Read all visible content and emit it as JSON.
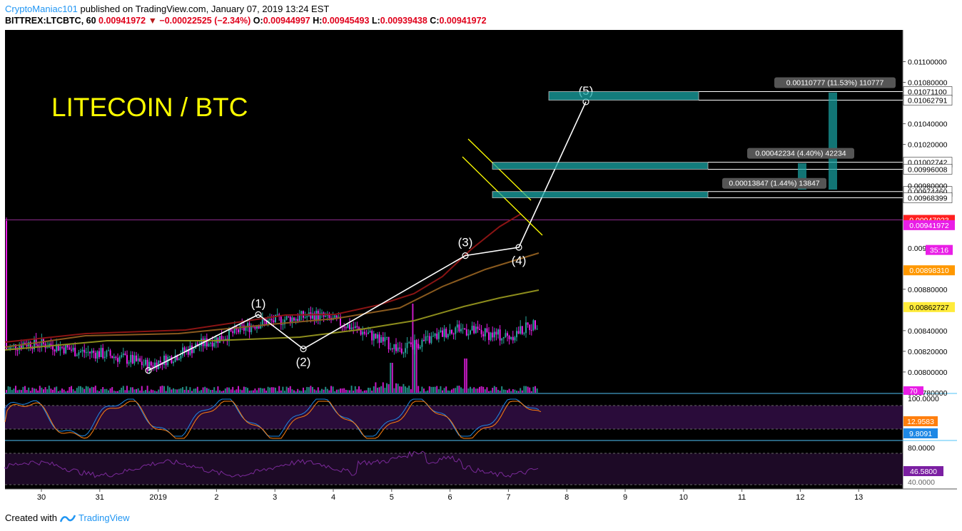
{
  "header": {
    "author": "CryptoManiac101",
    "published_text": "published on TradingView.com, January 07, 2019 13:24 EST",
    "symbol_line": "BITTREX:LTCBTC, 60",
    "last": "0.00941972",
    "change": "−0.00022525 (−2.34%)",
    "o_label": "O:",
    "o_value": "0.00944997",
    "h_label": "H:",
    "h_value": "0.00945493",
    "l_label": "L:",
    "l_value": "0.00939438",
    "c_label": "C:",
    "c_value": "0.00941972"
  },
  "chart_title": "LITECOIN / BTC",
  "footer": {
    "created_with": "Created with",
    "brand": "TradingView"
  },
  "price_axis": {
    "ticks": [
      "0.01100000",
      "0.01080000",
      "0.01040000",
      "0.01020000",
      "0.00880000",
      "0.00840000",
      "0.00820000",
      "0.00800000",
      "0.00780000"
    ],
    "tick_values": [
      0.011,
      0.0108,
      0.0104,
      0.0102,
      0.0088,
      0.0084,
      0.0082,
      0.008,
      0.0078
    ],
    "level_labels": [
      "0.01071100",
      "0.01062791",
      "0.01002742",
      "0.00996008",
      "0.00974460",
      "0.00968399"
    ],
    "level_values": [
      0.010711,
      0.01062791,
      0.01002742,
      0.00996008,
      0.0097446,
      0.00968399
    ],
    "partial_labels": [
      "0.00980000",
      "0.009"
    ],
    "partial_values": [
      0.0098,
      0.0092
    ],
    "tags": [
      {
        "text": "0.00947023",
        "value": 0.00947023,
        "color": "#ff1f1f"
      },
      {
        "text": "0.00941972",
        "value": 0.00941972,
        "color": "#e91ee6"
      },
      {
        "text": "35:16",
        "value": 0.00918,
        "color": "#e91ee6"
      },
      {
        "text": "0.00898310",
        "value": 0.0089831,
        "color": "#ff9800"
      },
      {
        "text": "0.00862727",
        "value": 0.00862727,
        "color": "#ffeb3b"
      }
    ],
    "volume_tag": "70"
  },
  "stoch": {
    "top_label": "100.0000",
    "values": [
      "12.9583",
      "9.8091"
    ],
    "colors": [
      "#ff7f0e",
      "#1e88e5"
    ]
  },
  "rsi": {
    "top_label": "80.0000",
    "value": "46.5800",
    "bottom_label": "40.0000"
  },
  "time_axis": {
    "labels": [
      "30",
      "31",
      "2019",
      "2",
      "3",
      "4",
      "5",
      "6",
      "7",
      "8",
      "9",
      "10",
      "11",
      "12",
      "13"
    ]
  },
  "waves": {
    "labels": [
      "(1)",
      "(2)",
      "(3)",
      "(4)",
      "(5)"
    ],
    "prices": [
      0.008555,
      0.008223,
      0.009125,
      0.009205,
      0.010612
    ]
  },
  "targets": [
    {
      "text": "0.00013847 (1.44%) 13847",
      "top": 0.0097446,
      "bottom": 0.00968399
    },
    {
      "text": "0.00042234 (4.40%) 42234",
      "top": 0.01002742,
      "bottom": 0.00996008
    },
    {
      "text": "0.00110777 (11.53%) 110777",
      "top": 0.010711,
      "bottom": 0.01062791
    }
  ],
  "colors": {
    "up": "#26a69a",
    "down": "#e91ee6",
    "accent_title": "#ffff00",
    "bg": "#000000"
  }
}
